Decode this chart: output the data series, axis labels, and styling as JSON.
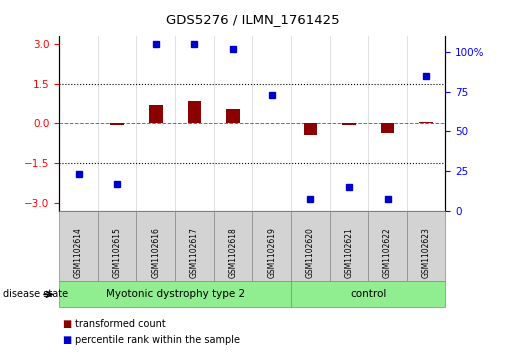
{
  "title": "GDS5276 / ILMN_1761425",
  "samples": [
    "GSM1102614",
    "GSM1102615",
    "GSM1102616",
    "GSM1102617",
    "GSM1102618",
    "GSM1102619",
    "GSM1102620",
    "GSM1102621",
    "GSM1102622",
    "GSM1102623"
  ],
  "transformed_count": [
    0.0,
    -0.05,
    0.7,
    0.85,
    0.55,
    0.0,
    -0.45,
    -0.05,
    -0.35,
    0.05
  ],
  "percentile_rank": [
    18,
    12,
    100,
    100,
    97,
    68,
    2,
    10,
    2,
    80
  ],
  "group1_count": 6,
  "group2_count": 4,
  "group1_label": "Myotonic dystrophy type 2",
  "group2_label": "control",
  "group_color": "#90EE90",
  "sample_box_color": "#D3D3D3",
  "ylim_left": [
    -3.3,
    3.3
  ],
  "ylim_right": [
    0,
    110
  ],
  "yticks_left": [
    -3,
    -1.5,
    0,
    1.5,
    3
  ],
  "yticks_right_vals": [
    0,
    25,
    50,
    75,
    100
  ],
  "yticks_right_labels": [
    "0",
    "25",
    "50",
    "75",
    "100%"
  ],
  "hlines": [
    1.5,
    -1.5
  ],
  "bar_color": "#8B0000",
  "dot_color": "#0000CD",
  "bar_width": 0.35,
  "legend_labels": [
    "transformed count",
    "percentile rank within the sample"
  ],
  "legend_colors": [
    "#8B0000",
    "#0000CD"
  ],
  "disease_state_label": "disease state"
}
